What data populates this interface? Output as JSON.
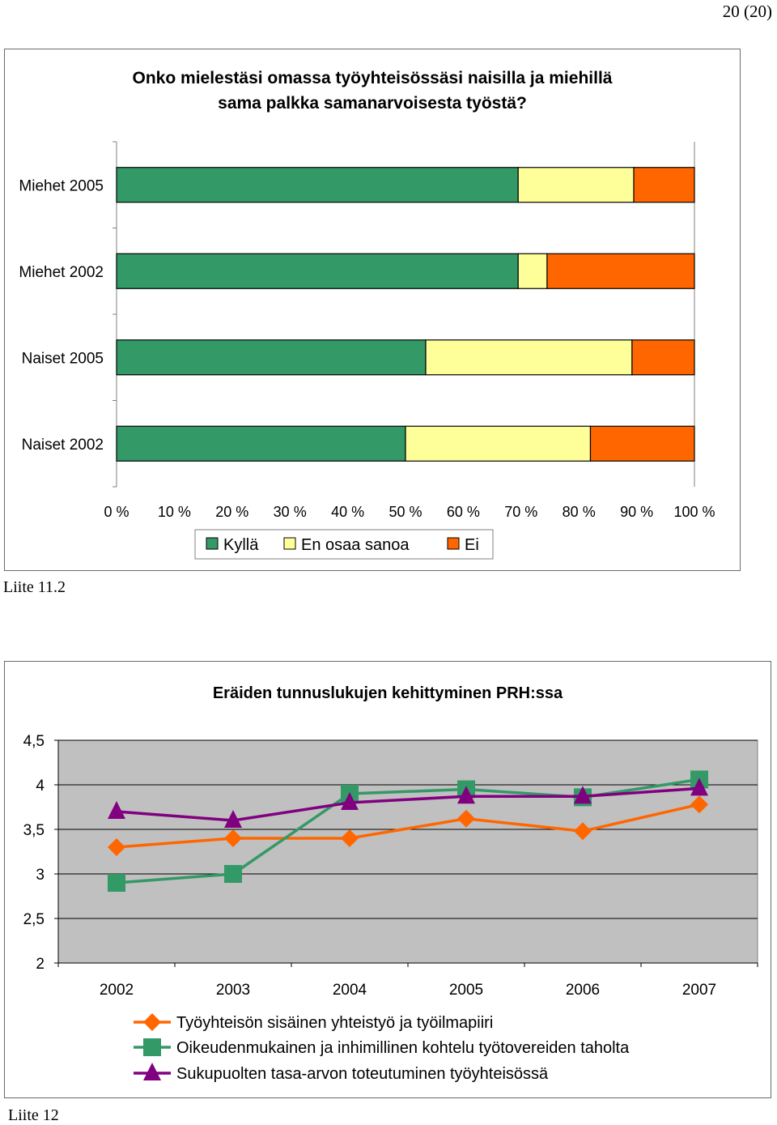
{
  "page_number": "20 (20)",
  "caption_1": "Liite 11.2",
  "caption_2": "Liite 12",
  "chart_data": [
    {
      "type": "bar",
      "orientation": "horizontal",
      "stacked": "percent",
      "title_line1": "Onko mielestäsi omassa työyhteisössäsi naisilla ja miehillä",
      "title_line2": "sama palkka samanarvoisesta työstä?",
      "categories": [
        "Miehet 2005",
        "Miehet 2002",
        "Naiset 2005",
        "Naiset 2002"
      ],
      "series": [
        {
          "name": "Kyllä",
          "color": "#339966",
          "values": [
            69.5,
            69.5,
            53.5,
            50
          ]
        },
        {
          "name": "En osaa sanoa",
          "color": "#ffff99",
          "values": [
            20,
            5,
            35.7,
            32
          ]
        },
        {
          "name": "Ei",
          "color": "#ff6600",
          "values": [
            10.5,
            25.5,
            10.8,
            18
          ]
        }
      ],
      "xticks": [
        "0 %",
        "10 %",
        "20 %",
        "30 %",
        "40 %",
        "50 %",
        "60 %",
        "70 %",
        "80 %",
        "90 %",
        "100 %"
      ],
      "xlim": [
        0,
        100
      ],
      "legend_position": "bottom"
    },
    {
      "type": "line",
      "title": "Eräiden tunnuslukujen kehittyminen PRH:ssa",
      "categories": [
        "2002",
        "2003",
        "2004",
        "2005",
        "2006",
        "2007"
      ],
      "yticks": [
        "2",
        "2,5",
        "3",
        "3,5",
        "4",
        "4,5"
      ],
      "ylim": [
        2,
        4.5
      ],
      "plot_background": "#c0c0c0",
      "legend_position": "bottom",
      "series": [
        {
          "name": "Työyhteisön sisäinen yhteistyö ja työilmapiiri",
          "color": "#ff6600",
          "marker": "diamond",
          "values": [
            3.3,
            3.4,
            3.4,
            3.62,
            3.48,
            3.78
          ]
        },
        {
          "name": "Oikeudenmukainen ja inhimillinen kohtelu työtovereiden taholta",
          "color": "#339966",
          "marker": "square",
          "values": [
            2.9,
            3.0,
            3.9,
            3.95,
            3.86,
            4.06
          ]
        },
        {
          "name": "Sukupuolten tasa-arvon toteutuminen työyhteisössä",
          "color": "#800080",
          "marker": "triangle",
          "values": [
            3.7,
            3.6,
            3.8,
            3.87,
            3.87,
            3.96
          ]
        }
      ]
    }
  ]
}
